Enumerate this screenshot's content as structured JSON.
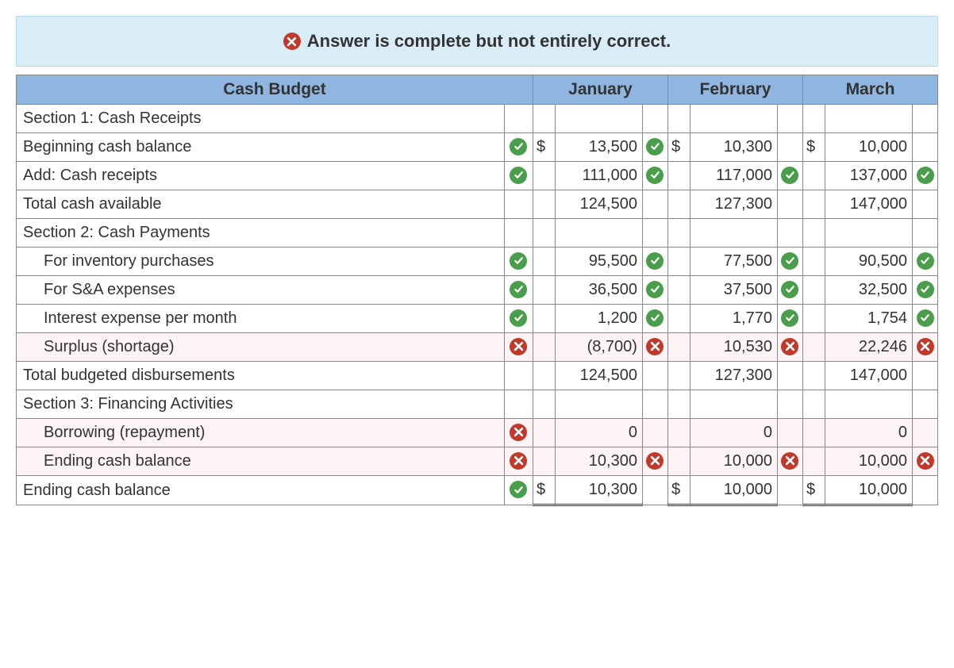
{
  "banner": {
    "text": "Answer is complete but not entirely correct.",
    "icon": "wrong",
    "bg_color": "#d9edf7"
  },
  "table": {
    "header_bg": "#8fb6e0",
    "columns": {
      "label": "Cash Budget",
      "months": [
        "January",
        "February",
        "March"
      ]
    },
    "rows": [
      {
        "label": "Section 1: Cash Receipts",
        "indent": false,
        "row_icon": null,
        "cells": [
          {
            "currency": "",
            "value": "",
            "icon": null
          },
          {
            "currency": "",
            "value": "",
            "icon": null
          },
          {
            "currency": "",
            "value": "",
            "icon": null
          }
        ]
      },
      {
        "label": "Beginning cash balance",
        "indent": false,
        "row_icon": "correct",
        "cells": [
          {
            "currency": "$",
            "value": "13,500",
            "icon": "correct"
          },
          {
            "currency": "$",
            "value": "10,300",
            "icon": null
          },
          {
            "currency": "$",
            "value": "10,000",
            "icon": null
          }
        ]
      },
      {
        "label": "Add: Cash receipts",
        "indent": false,
        "row_icon": "correct",
        "cells": [
          {
            "currency": "",
            "value": "111,000",
            "icon": "correct"
          },
          {
            "currency": "",
            "value": "117,000",
            "icon": "correct"
          },
          {
            "currency": "",
            "value": "137,000",
            "icon": "correct"
          }
        ]
      },
      {
        "label": "Total cash available",
        "indent": false,
        "row_icon": null,
        "cells": [
          {
            "currency": "",
            "value": "124,500",
            "icon": null
          },
          {
            "currency": "",
            "value": "127,300",
            "icon": null
          },
          {
            "currency": "",
            "value": "147,000",
            "icon": null
          }
        ]
      },
      {
        "label": "Section 2: Cash Payments",
        "indent": false,
        "row_icon": null,
        "cells": [
          {
            "currency": "",
            "value": "",
            "icon": null
          },
          {
            "currency": "",
            "value": "",
            "icon": null
          },
          {
            "currency": "",
            "value": "",
            "icon": null
          }
        ]
      },
      {
        "label": "For inventory purchases",
        "indent": true,
        "row_icon": "correct",
        "cells": [
          {
            "currency": "",
            "value": "95,500",
            "icon": "correct"
          },
          {
            "currency": "",
            "value": "77,500",
            "icon": "correct"
          },
          {
            "currency": "",
            "value": "90,500",
            "icon": "correct"
          }
        ]
      },
      {
        "label": "For S&A expenses",
        "indent": true,
        "row_icon": "correct",
        "cells": [
          {
            "currency": "",
            "value": "36,500",
            "icon": "correct"
          },
          {
            "currency": "",
            "value": "37,500",
            "icon": "correct"
          },
          {
            "currency": "",
            "value": "32,500",
            "icon": "correct"
          }
        ]
      },
      {
        "label": "Interest expense per month",
        "indent": true,
        "row_icon": "correct",
        "cells": [
          {
            "currency": "",
            "value": "1,200",
            "icon": "correct"
          },
          {
            "currency": "",
            "value": "1,770",
            "icon": "correct"
          },
          {
            "currency": "",
            "value": "1,754",
            "icon": "correct"
          }
        ]
      },
      {
        "label": "Surplus (shortage)",
        "indent": true,
        "row_icon": "wrong",
        "row_wrong": true,
        "cells": [
          {
            "currency": "",
            "value": "(8,700)",
            "icon": "wrong"
          },
          {
            "currency": "",
            "value": "10,530",
            "icon": "wrong"
          },
          {
            "currency": "",
            "value": "22,246",
            "icon": "wrong"
          }
        ]
      },
      {
        "label": "Total budgeted disbursements",
        "indent": false,
        "row_icon": null,
        "cells": [
          {
            "currency": "",
            "value": "124,500",
            "icon": null
          },
          {
            "currency": "",
            "value": "127,300",
            "icon": null
          },
          {
            "currency": "",
            "value": "147,000",
            "icon": null
          }
        ]
      },
      {
        "label": "Section 3: Financing Activities",
        "indent": false,
        "row_icon": null,
        "cells": [
          {
            "currency": "",
            "value": "",
            "icon": null
          },
          {
            "currency": "",
            "value": "",
            "icon": null
          },
          {
            "currency": "",
            "value": "",
            "icon": null
          }
        ]
      },
      {
        "label": "Borrowing (repayment)",
        "indent": true,
        "row_icon": "wrong",
        "row_wrong": true,
        "cells": [
          {
            "currency": "",
            "value": "0",
            "icon": null
          },
          {
            "currency": "",
            "value": "0",
            "icon": null
          },
          {
            "currency": "",
            "value": "0",
            "icon": null
          }
        ]
      },
      {
        "label": "Ending cash balance",
        "indent": true,
        "row_icon": "wrong",
        "row_wrong": true,
        "cells": [
          {
            "currency": "",
            "value": "10,300",
            "icon": "wrong"
          },
          {
            "currency": "",
            "value": "10,000",
            "icon": "wrong"
          },
          {
            "currency": "",
            "value": "10,000",
            "icon": "wrong"
          }
        ]
      },
      {
        "label": "Ending cash balance",
        "indent": false,
        "row_icon": "correct",
        "final": true,
        "cells": [
          {
            "currency": "$",
            "value": "10,300",
            "icon": null
          },
          {
            "currency": "$",
            "value": "10,000",
            "icon": null
          },
          {
            "currency": "$",
            "value": "10,000",
            "icon": null
          }
        ]
      }
    ]
  },
  "colors": {
    "correct": "#4a9d4a",
    "wrong": "#c0392b",
    "wrong_row_bg": "#fbf3f4"
  }
}
